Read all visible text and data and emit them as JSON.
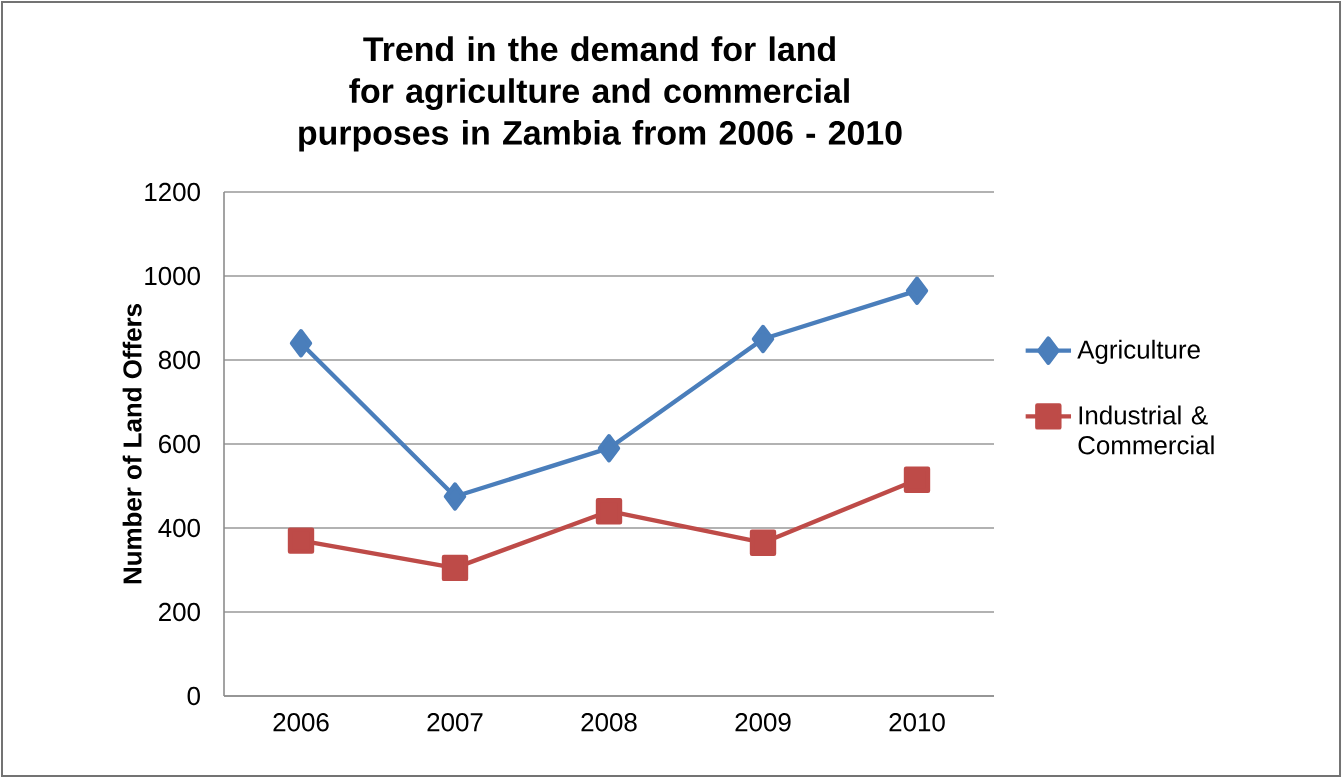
{
  "chart_data": {
    "type": "line",
    "title": "Trend in the demand for land for agriculture and commercial purposes in Zambia from 2006 - 2010",
    "ylabel": "Number of Land Offers",
    "categories": [
      "2006",
      "2007",
      "2008",
      "2009",
      "2010"
    ],
    "series": [
      {
        "name": "Agriculture",
        "color": "#4a7ebb",
        "marker": "diamond",
        "values": [
          840,
          475,
          590,
          850,
          965
        ]
      },
      {
        "name": "Industrial & Commercial",
        "color": "#be4b48",
        "marker": "square",
        "values": [
          370,
          305,
          440,
          365,
          515
        ]
      }
    ],
    "ylim": [
      0,
      1200
    ],
    "yticks": [
      0,
      200,
      400,
      600,
      800,
      1000,
      1200
    ],
    "grid": "y",
    "legend": "right",
    "line_style": "solid"
  }
}
